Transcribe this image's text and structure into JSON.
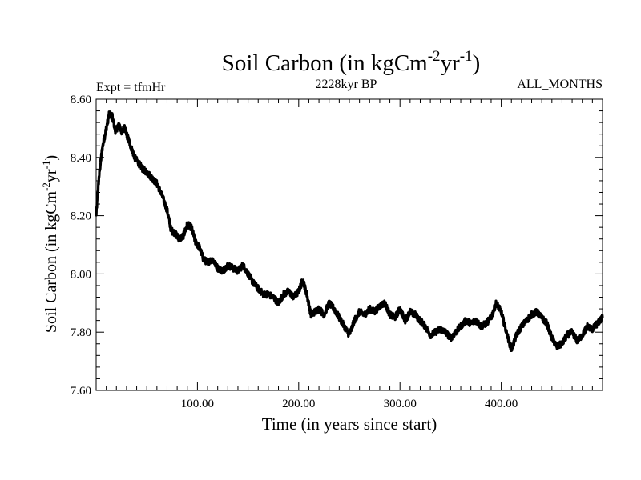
{
  "chart_data": {
    "type": "line",
    "title_main": "Soil Carbon (in kgCm",
    "title_sup1": "-2",
    "title_mid": "yr",
    "title_sup2": "-1",
    "title_end": ")",
    "expt_label": "Expt = tfmHr",
    "period_label": "2228kyr BP",
    "months_label": "ALL_MONTHS",
    "xlabel": "Time (in years since start)",
    "ylabel_main": "Soil Carbon (in kgCm",
    "ylabel_sup1": "-2",
    "ylabel_mid": "yr",
    "ylabel_sup2": "-1",
    "ylabel_end": ")",
    "xlim": [
      0,
      500
    ],
    "ylim": [
      7.6,
      8.6
    ],
    "xticks": [
      100,
      200,
      300,
      400
    ],
    "xtick_labels": [
      "100.00",
      "200.00",
      "300.00",
      "400.00"
    ],
    "yticks": [
      7.6,
      7.8,
      8.0,
      8.2,
      8.4,
      8.6
    ],
    "ytick_labels": [
      "7.60",
      "7.80",
      "8.00",
      "8.20",
      "8.40",
      "8.60"
    ],
    "line_color": "#000000",
    "series": [
      {
        "name": "Soil Carbon",
        "x": [
          0,
          3,
          6,
          10,
          13,
          16,
          19,
          22,
          25,
          28,
          31,
          34,
          38,
          42,
          46,
          50,
          55,
          60,
          65,
          70,
          74,
          78,
          82,
          86,
          90,
          94,
          98,
          102,
          106,
          110,
          115,
          120,
          125,
          130,
          135,
          140,
          145,
          150,
          155,
          160,
          165,
          170,
          175,
          180,
          185,
          190,
          195,
          200,
          204,
          208,
          212,
          216,
          220,
          225,
          230,
          235,
          240,
          245,
          250,
          255,
          260,
          265,
          270,
          275,
          280,
          285,
          290,
          295,
          300,
          305,
          310,
          315,
          320,
          325,
          330,
          335,
          340,
          345,
          350,
          355,
          360,
          365,
          370,
          375,
          380,
          385,
          390,
          395,
          400,
          405,
          410,
          415,
          420,
          425,
          430,
          435,
          440,
          445,
          450,
          455,
          460,
          465,
          470,
          475,
          480,
          485,
          490,
          495,
          500
        ],
        "y": [
          8.2,
          8.34,
          8.43,
          8.5,
          8.55,
          8.54,
          8.49,
          8.51,
          8.49,
          8.5,
          8.47,
          8.44,
          8.4,
          8.38,
          8.36,
          8.35,
          8.33,
          8.31,
          8.27,
          8.22,
          8.15,
          8.14,
          8.12,
          8.13,
          8.17,
          8.16,
          8.11,
          8.09,
          8.05,
          8.04,
          8.05,
          8.02,
          8.01,
          8.03,
          8.02,
          8.01,
          8.03,
          8.0,
          7.97,
          7.95,
          7.93,
          7.93,
          7.92,
          7.9,
          7.93,
          7.94,
          7.92,
          7.94,
          7.98,
          7.93,
          7.86,
          7.87,
          7.88,
          7.86,
          7.9,
          7.88,
          7.85,
          7.82,
          7.79,
          7.84,
          7.87,
          7.86,
          7.88,
          7.87,
          7.89,
          7.9,
          7.86,
          7.85,
          7.88,
          7.84,
          7.87,
          7.86,
          7.84,
          7.82,
          7.79,
          7.8,
          7.81,
          7.8,
          7.78,
          7.8,
          7.82,
          7.84,
          7.83,
          7.84,
          7.82,
          7.83,
          7.85,
          7.9,
          7.87,
          7.8,
          7.74,
          7.79,
          7.82,
          7.84,
          7.86,
          7.87,
          7.85,
          7.83,
          7.78,
          7.75,
          7.76,
          7.79,
          7.8,
          7.77,
          7.79,
          7.82,
          7.81,
          7.83,
          7.85
        ]
      }
    ]
  }
}
